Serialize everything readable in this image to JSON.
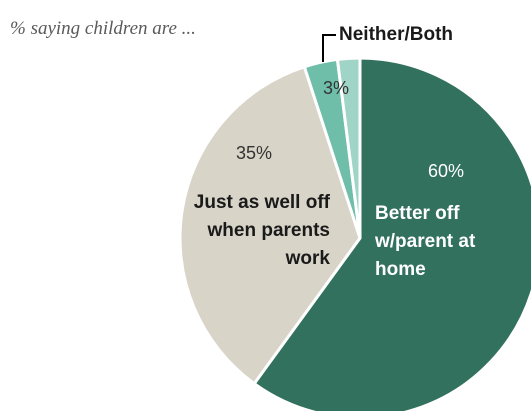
{
  "chart_data": {
    "type": "pie",
    "subtitle": "% saying children are ...",
    "slices": [
      {
        "label": "Better off w/parent at home",
        "value": 60,
        "value_label": "60%",
        "color": "#33715f"
      },
      {
        "label": "Just as well off when parents work",
        "value": 35,
        "value_label": "35%",
        "color": "#d8d4c8"
      },
      {
        "label": "Neither/Both",
        "value": 3,
        "value_label": "3%",
        "color": "#6fbea9"
      }
    ],
    "extra_sliver": {
      "value": 2,
      "color": "#9fd4c6"
    },
    "label_lines": {
      "better_off": [
        "Better off",
        "w/parent at",
        "home"
      ],
      "just_as_well": [
        "Just as well off",
        "when parents",
        "work"
      ]
    },
    "colors": {
      "label_text_dark": "#1a1a1a",
      "label_text_light": "#ffffff",
      "pct_text_dark": "#333333",
      "callout_line": "#000000"
    }
  }
}
